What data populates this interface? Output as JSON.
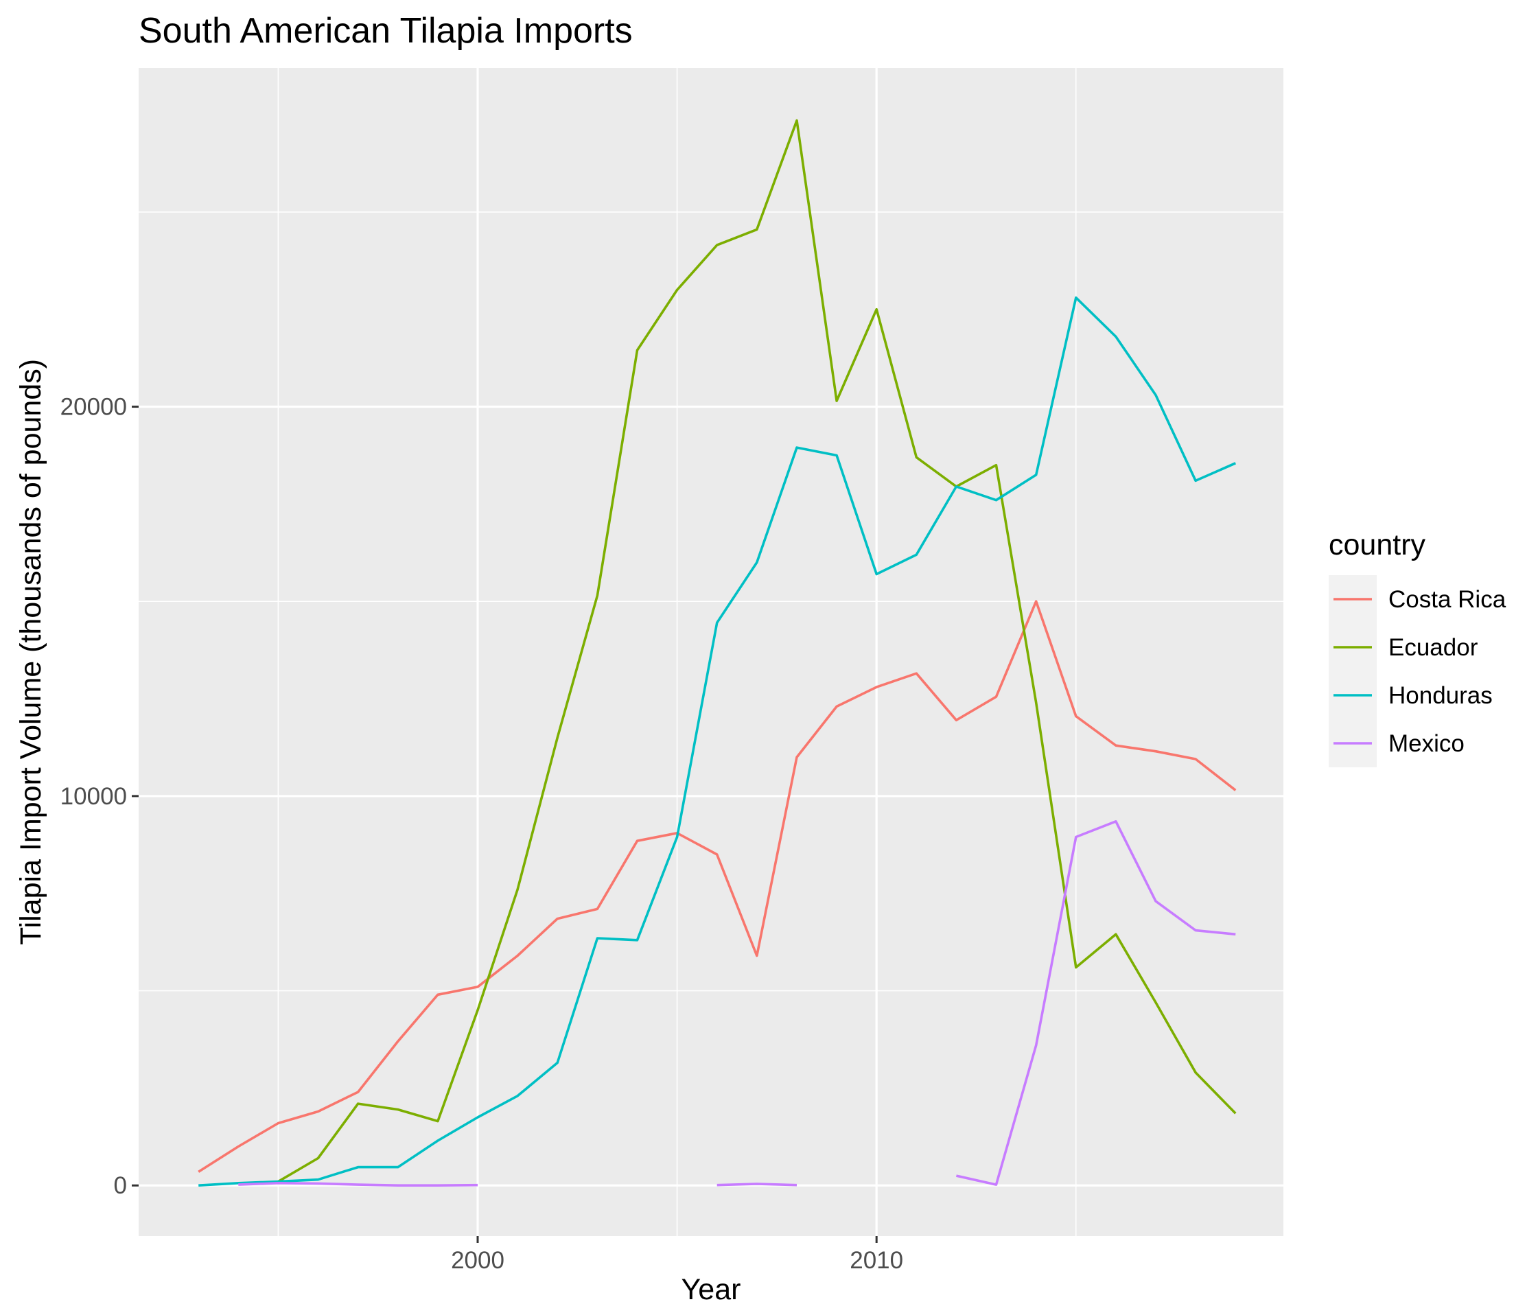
{
  "chart_data": {
    "type": "line",
    "title": "South American Tilapia Imports",
    "xlabel": "Year",
    "ylabel": "Tilapia Import Volume (thousands of pounds)",
    "xlim": [
      1991.5,
      2020.2
    ],
    "ylim": [
      -1300,
      28700
    ],
    "x_major_ticks": [
      2000,
      2010
    ],
    "x_minor_ticks": [
      1995,
      2005,
      2015
    ],
    "y_major_ticks": [
      0,
      10000,
      20000
    ],
    "y_minor_ticks": [
      5000,
      15000,
      25000
    ],
    "grid": true,
    "legend": {
      "title": "country",
      "position": "right"
    },
    "colors": {
      "panel": "#EBEBEB",
      "grid": "#FFFFFF",
      "legend_key": "#F2F2F2"
    },
    "series": [
      {
        "name": "Costa Rica",
        "color": "#F8766D",
        "points": [
          [
            1993,
            350
          ],
          [
            1994,
            1000
          ],
          [
            1995,
            1600
          ],
          [
            1996,
            1900
          ],
          [
            1997,
            2400
          ],
          [
            1998,
            3700
          ],
          [
            1999,
            4900
          ],
          [
            2000,
            5100
          ],
          [
            2001,
            5900
          ],
          [
            2002,
            6850
          ],
          [
            2003,
            7100
          ],
          [
            2004,
            8850
          ],
          [
            2005,
            9050
          ],
          [
            2006,
            8500
          ],
          [
            2007,
            5900
          ],
          [
            2008,
            11000
          ],
          [
            2009,
            12300
          ],
          [
            2010,
            12800
          ],
          [
            2011,
            13150
          ],
          [
            2012,
            11950
          ],
          [
            2013,
            12550
          ],
          [
            2014,
            15000
          ],
          [
            2015,
            12050
          ],
          [
            2016,
            11300
          ],
          [
            2017,
            11150
          ],
          [
            2018,
            10950
          ],
          [
            2019,
            10150
          ]
        ]
      },
      {
        "name": "Ecuador",
        "color": "#7CAE00",
        "points": [
          [
            1995,
            100
          ],
          [
            1996,
            700
          ],
          [
            1997,
            2100
          ],
          [
            1998,
            1950
          ],
          [
            1999,
            1650
          ],
          [
            2000,
            4500
          ],
          [
            2001,
            7600
          ],
          [
            2002,
            11500
          ],
          [
            2003,
            15150
          ],
          [
            2004,
            21450
          ],
          [
            2005,
            23000
          ],
          [
            2006,
            24150
          ],
          [
            2007,
            24550
          ],
          [
            2008,
            27350
          ],
          [
            2009,
            20150
          ],
          [
            2010,
            22500
          ],
          [
            2011,
            18700
          ],
          [
            2012,
            17950
          ],
          [
            2013,
            18500
          ],
          [
            2014,
            12400
          ],
          [
            2015,
            5600
          ],
          [
            2016,
            6450
          ],
          [
            2017,
            4700
          ],
          [
            2018,
            2900
          ],
          [
            2019,
            1850
          ]
        ]
      },
      {
        "name": "Honduras",
        "color": "#00BFC4",
        "points": [
          [
            1993,
            0
          ],
          [
            1994,
            60
          ],
          [
            1995,
            100
          ],
          [
            1996,
            150
          ],
          [
            1997,
            470
          ],
          [
            1998,
            470
          ],
          [
            1999,
            1150
          ],
          [
            2000,
            1750
          ],
          [
            2001,
            2300
          ],
          [
            2002,
            3150
          ],
          [
            2003,
            6350
          ],
          [
            2004,
            6300
          ],
          [
            2005,
            8950
          ],
          [
            2006,
            14450
          ],
          [
            2007,
            16000
          ],
          [
            2008,
            18950
          ],
          [
            2009,
            18750
          ],
          [
            2010,
            15700
          ],
          [
            2011,
            16200
          ],
          [
            2012,
            17950
          ],
          [
            2013,
            17600
          ],
          [
            2014,
            18250
          ],
          [
            2015,
            22800
          ],
          [
            2016,
            21800
          ],
          [
            2017,
            20300
          ],
          [
            2018,
            18100
          ],
          [
            2019,
            18550
          ]
        ]
      },
      {
        "name": "Mexico",
        "color": "#C77CFF",
        "segments": [
          [
            [
              1994,
              20
            ],
            [
              1995,
              60
            ],
            [
              1996,
              50
            ],
            [
              1997,
              20
            ],
            [
              1998,
              0
            ],
            [
              1999,
              0
            ],
            [
              2000,
              10
            ]
          ],
          [
            [
              2006,
              10
            ],
            [
              2007,
              40
            ],
            [
              2008,
              10
            ]
          ],
          [
            [
              2012,
              250
            ],
            [
              2013,
              20
            ],
            [
              2014,
              3600
            ],
            [
              2015,
              8950
            ],
            [
              2016,
              9350
            ],
            [
              2017,
              7300
            ],
            [
              2018,
              6550
            ],
            [
              2019,
              6450
            ]
          ]
        ]
      }
    ]
  }
}
